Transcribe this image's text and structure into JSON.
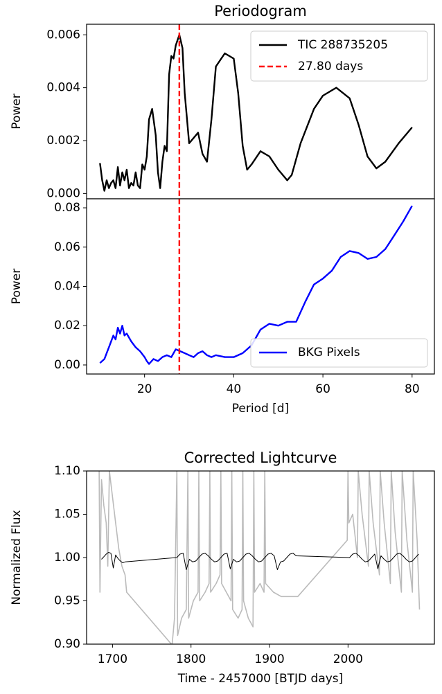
{
  "chart_data": [
    {
      "type": "line",
      "title": "Periodogram",
      "ylabel": "Power",
      "xlim": [
        7,
        85
      ],
      "ylim": [
        -0.0002,
        0.0064
      ],
      "yticks": [
        {
          "value": 0,
          "label": "0.000"
        },
        {
          "value": 0.002,
          "label": "0.002"
        },
        {
          "value": 0.004,
          "label": "0.004"
        },
        {
          "value": 0.006,
          "label": "0.006"
        }
      ],
      "legend": "upper right",
      "series": [
        {
          "name": "TIC 288735205",
          "color": "#000000",
          "x": [
            10,
            10.5,
            11,
            11.5,
            12,
            12.5,
            13,
            13.5,
            14,
            14.5,
            15,
            15.5,
            16,
            16.5,
            17,
            17.5,
            18,
            18.5,
            19,
            19.5,
            20,
            20.5,
            21,
            21.7,
            22.5,
            23,
            23.5,
            24,
            24.5,
            25,
            25.5,
            26,
            26.5,
            27,
            27.8,
            28.5,
            29,
            30,
            31,
            32,
            33,
            34,
            35,
            36,
            38,
            40,
            41,
            42,
            43,
            44,
            46,
            48,
            50,
            52,
            53,
            55,
            58,
            60,
            63,
            66,
            68,
            70,
            72,
            74,
            77,
            80
          ],
          "values": [
            0.00115,
            0.0005,
            0.0001,
            0.0005,
            0.0002,
            0.0004,
            0.0005,
            0.0002,
            0.001,
            0.0003,
            0.0008,
            0.0005,
            0.0009,
            0.0002,
            0.0004,
            0.0003,
            0.0008,
            0.0003,
            0.0002,
            0.0011,
            0.0009,
            0.0014,
            0.0028,
            0.0032,
            0.0022,
            0.0008,
            0.0002,
            0.0012,
            0.0018,
            0.0016,
            0.0045,
            0.0052,
            0.0051,
            0.0056,
            0.006,
            0.0055,
            0.0038,
            0.0019,
            0.0021,
            0.0023,
            0.0015,
            0.0012,
            0.0028,
            0.0048,
            0.0053,
            0.0051,
            0.0038,
            0.0018,
            0.0009,
            0.0011,
            0.0016,
            0.0014,
            0.0009,
            0.0005,
            0.0007,
            0.0019,
            0.0032,
            0.0037,
            0.004,
            0.0036,
            0.0026,
            0.0014,
            0.00095,
            0.0012,
            0.0019,
            0.0025
          ]
        }
      ],
      "vline": {
        "value": 27.8,
        "name": "27.80 days",
        "color": "#ff0000"
      }
    },
    {
      "type": "line",
      "ylabel": "Power",
      "xlabel": "Period [d]",
      "xlim": [
        7,
        85
      ],
      "ylim": [
        -0.0046,
        0.0846
      ],
      "xticks": [
        20,
        40,
        60,
        80
      ],
      "yticks": [
        {
          "value": 0,
          "label": "0.00"
        },
        {
          "value": 0.02,
          "label": "0.02"
        },
        {
          "value": 0.04,
          "label": "0.04"
        },
        {
          "value": 0.06,
          "label": "0.06"
        },
        {
          "value": 0.08,
          "label": "0.08"
        }
      ],
      "legend": "lower right",
      "series": [
        {
          "name": "BKG Pixels",
          "color": "#0000ff",
          "x": [
            10,
            11,
            12,
            13,
            13.5,
            14,
            14.5,
            15,
            15.5,
            16,
            17,
            18,
            19,
            20,
            20.5,
            21,
            22,
            23,
            24,
            25,
            26,
            27,
            28,
            29,
            30,
            31,
            32,
            33,
            34,
            35,
            36,
            38,
            40,
            42,
            44,
            46,
            48,
            50,
            52,
            54,
            56,
            58,
            60,
            62,
            64,
            66,
            68,
            70,
            72,
            74,
            76,
            78,
            80
          ],
          "values": [
            0.001,
            0.003,
            0.009,
            0.015,
            0.013,
            0.019,
            0.016,
            0.02,
            0.015,
            0.016,
            0.012,
            0.009,
            0.007,
            0.004,
            0.002,
            0.0005,
            0.003,
            0.002,
            0.004,
            0.005,
            0.004,
            0.008,
            0.007,
            0.006,
            0.005,
            0.004,
            0.006,
            0.007,
            0.005,
            0.004,
            0.005,
            0.004,
            0.004,
            0.006,
            0.01,
            0.018,
            0.021,
            0.02,
            0.022,
            0.022,
            0.032,
            0.041,
            0.044,
            0.048,
            0.055,
            0.058,
            0.057,
            0.054,
            0.055,
            0.059,
            0.066,
            0.073,
            0.081
          ]
        }
      ],
      "vline": {
        "value": 27.8,
        "color": "#ff0000"
      }
    },
    {
      "type": "line",
      "title": "Corrected Lightcurve",
      "ylabel": "Normalized Flux",
      "xlabel": "Time - 2457000 [BTJD days]",
      "xlim": [
        1667,
        2110
      ],
      "ylim": [
        0.9,
        1.1
      ],
      "xticks": [
        1700,
        1800,
        1900,
        2000
      ],
      "yticks": [
        {
          "value": 0.9,
          "label": "0.90"
        },
        {
          "value": 0.95,
          "label": "0.95"
        },
        {
          "value": 1,
          "label": "1.00"
        },
        {
          "value": 1.05,
          "label": "1.05"
        },
        {
          "value": 1.1,
          "label": "1.10"
        }
      ],
      "series": [
        {
          "color": "#bbbbbb",
          "width": 1.6,
          "x": [
            1683,
            1684,
            1686,
            1689,
            1692,
            1694,
            1696,
            1700,
            1704,
            1708,
            1712,
            1716,
            1718,
            1775,
            1776,
            1779,
            1782,
            1783,
            1788,
            1794,
            1796,
            1797,
            1803,
            1809,
            1810,
            1811,
            1818,
            1823,
            1824,
            1825,
            1832,
            1837,
            1838,
            1839,
            1845,
            1851,
            1852,
            1853,
            1860,
            1865,
            1866,
            1867,
            1873,
            1879,
            1880,
            1881,
            1888,
            1893,
            1894,
            1895,
            1905,
            1915,
            1936,
            1999,
            2000,
            2001,
            2006,
            2012,
            2013,
            2018,
            2026,
            2027,
            2032,
            2040,
            2041,
            2046,
            2054,
            2055,
            2060,
            2068,
            2069,
            2075,
            2082,
            2083,
            2088,
            2091
          ],
          "values": [
            1.1,
            0.96,
            1.09,
            1.06,
            1.04,
            0.99,
            1.1,
            1.07,
            1.04,
            1.01,
            0.99,
            0.98,
            0.96,
            0.9,
            0.9,
            0.93,
            1.1,
            0.91,
            0.93,
            0.94,
            1.1,
            0.93,
            0.95,
            0.96,
            1.1,
            0.95,
            0.96,
            0.97,
            1.1,
            0.96,
            0.97,
            0.98,
            1.1,
            0.97,
            0.96,
            0.95,
            1.1,
            0.94,
            0.93,
            0.94,
            1.1,
            0.95,
            0.93,
            0.92,
            1.1,
            0.96,
            0.97,
            0.96,
            1.1,
            0.97,
            0.96,
            0.955,
            0.955,
            1.02,
            1.1,
            1.04,
            1.05,
            1.0,
            1.1,
            1.05,
            0.99,
            1.1,
            1.04,
            0.98,
            1.1,
            1.04,
            0.97,
            1.1,
            1.03,
            0.96,
            1.1,
            1.02,
            0.96,
            1.1,
            1.02,
            0.94
          ]
        },
        {
          "color": "#000000",
          "width": 1,
          "x": [
            1686,
            1689,
            1692,
            1695,
            1698,
            1701,
            1704,
            1707,
            1710,
            1713,
            1716,
            1782,
            1786,
            1790,
            1794,
            1798,
            1802,
            1806,
            1810,
            1814,
            1818,
            1822,
            1826,
            1830,
            1834,
            1838,
            1842,
            1846,
            1850,
            1854,
            1858,
            1862,
            1866,
            1870,
            1874,
            1878,
            1882,
            1886,
            1890,
            1894,
            1898,
            1902,
            1906,
            1910,
            1914,
            1918,
            1922,
            1926,
            1930,
            1934,
            2002,
            2006,
            2010,
            2014,
            2018,
            2022,
            2026,
            2030,
            2034,
            2038,
            2042,
            2046,
            2050,
            2054,
            2058,
            2062,
            2066,
            2070,
            2074,
            2078,
            2082,
            2086,
            2090
          ],
          "values": [
            0.998,
            1.001,
            1.004,
            1.006,
            1.005,
            0.988,
            1.003,
            0.999,
            0.996,
            0.994,
            0.995,
            1.0,
            1.004,
            1.005,
            0.986,
            0.998,
            0.995,
            0.996,
            1.0,
            1.004,
            1.005,
            1.002,
            0.998,
            0.995,
            0.996,
            1.0,
            1.004,
            1.005,
            0.987,
            0.998,
            0.995,
            0.996,
            1.0,
            1.004,
            1.005,
            1.002,
            0.998,
            0.995,
            0.996,
            1.0,
            1.004,
            1.005,
            1.002,
            0.986,
            0.995,
            0.996,
            1.0,
            1.004,
            1.005,
            1.002,
            1.0,
            1.004,
            1.005,
            1.002,
            0.998,
            0.995,
            0.996,
            1.0,
            1.004,
            0.987,
            1.002,
            0.998,
            0.995,
            0.996,
            1.0,
            1.004,
            1.005,
            1.002,
            0.998,
            0.995,
            0.996,
            1.0,
            1.004
          ]
        }
      ]
    }
  ]
}
